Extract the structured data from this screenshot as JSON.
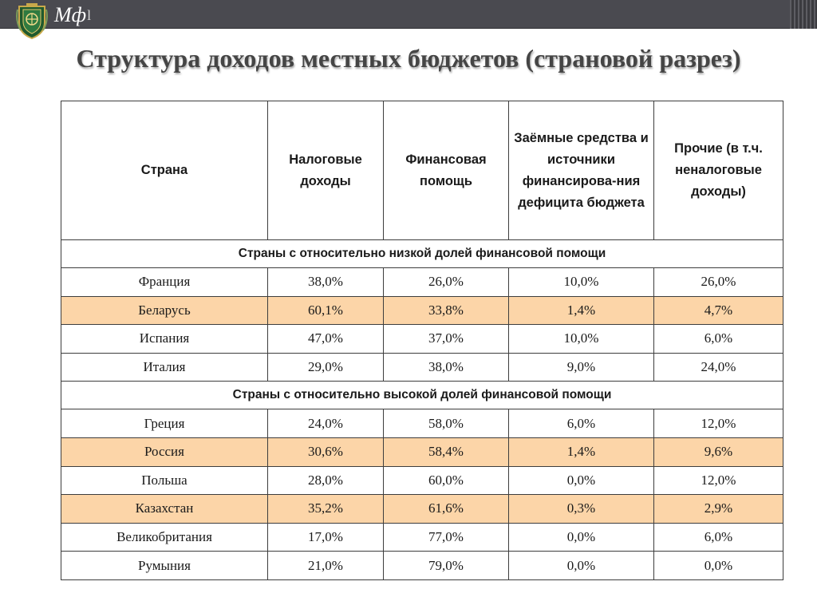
{
  "header": {
    "brand": "Мф",
    "brand_suffix": "l",
    "emblem_icon": "ministry-emblem-icon"
  },
  "title": "Структура доходов местных бюджетов (страновой разрез)",
  "table": {
    "columns": [
      "Страна",
      "Налоговые доходы",
      "Финансовая помощь",
      "Заёмные средства и источники финансирова-ния дефицита бюджета",
      "Прочие (в т.ч. неналоговые доходы)"
    ],
    "groups": [
      {
        "label": "Страны с относительно низкой долей финансовой помощи",
        "rows": [
          {
            "country": "Франция",
            "tax": "38,0%",
            "aid": "26,0%",
            "borrowed": "10,0%",
            "other": "26,0%",
            "highlight": false
          },
          {
            "country": "Беларусь",
            "tax": "60,1%",
            "aid": "33,8%",
            "borrowed": "1,4%",
            "other": "4,7%",
            "highlight": true
          },
          {
            "country": "Испания",
            "tax": "47,0%",
            "aid": "37,0%",
            "borrowed": "10,0%",
            "other": "6,0%",
            "highlight": false
          },
          {
            "country": "Италия",
            "tax": "29,0%",
            "aid": "38,0%",
            "borrowed": "9,0%",
            "other": "24,0%",
            "highlight": false
          }
        ]
      },
      {
        "label": "Страны с относительно высокой долей финансовой помощи",
        "rows": [
          {
            "country": "Греция",
            "tax": "24,0%",
            "aid": "58,0%",
            "borrowed": "6,0%",
            "other": "12,0%",
            "highlight": false
          },
          {
            "country": "Россия",
            "tax": "30,6%",
            "aid": "58,4%",
            "borrowed": "1,4%",
            "other": "9,6%",
            "highlight": true
          },
          {
            "country": "Польша",
            "tax": "28,0%",
            "aid": "60,0%",
            "borrowed": "0,0%",
            "other": "12,0%",
            "highlight": false
          },
          {
            "country": "Казахстан",
            "tax": "35,2%",
            "aid": "61,6%",
            "borrowed": "0,3%",
            "other": "2,9%",
            "highlight": true
          },
          {
            "country": "Великобритания",
            "tax": "17,0%",
            "aid": "77,0%",
            "borrowed": "0,0%",
            "other": "6,0%",
            "highlight": false
          },
          {
            "country": "Румыния",
            "tax": "21,0%",
            "aid": "79,0%",
            "borrowed": "0,0%",
            "other": "0,0%",
            "highlight": false
          }
        ]
      }
    ]
  },
  "colors": {
    "header_bar": "#4a4a50",
    "highlight_row": "#fcd5a8",
    "title_text": "#454545"
  }
}
